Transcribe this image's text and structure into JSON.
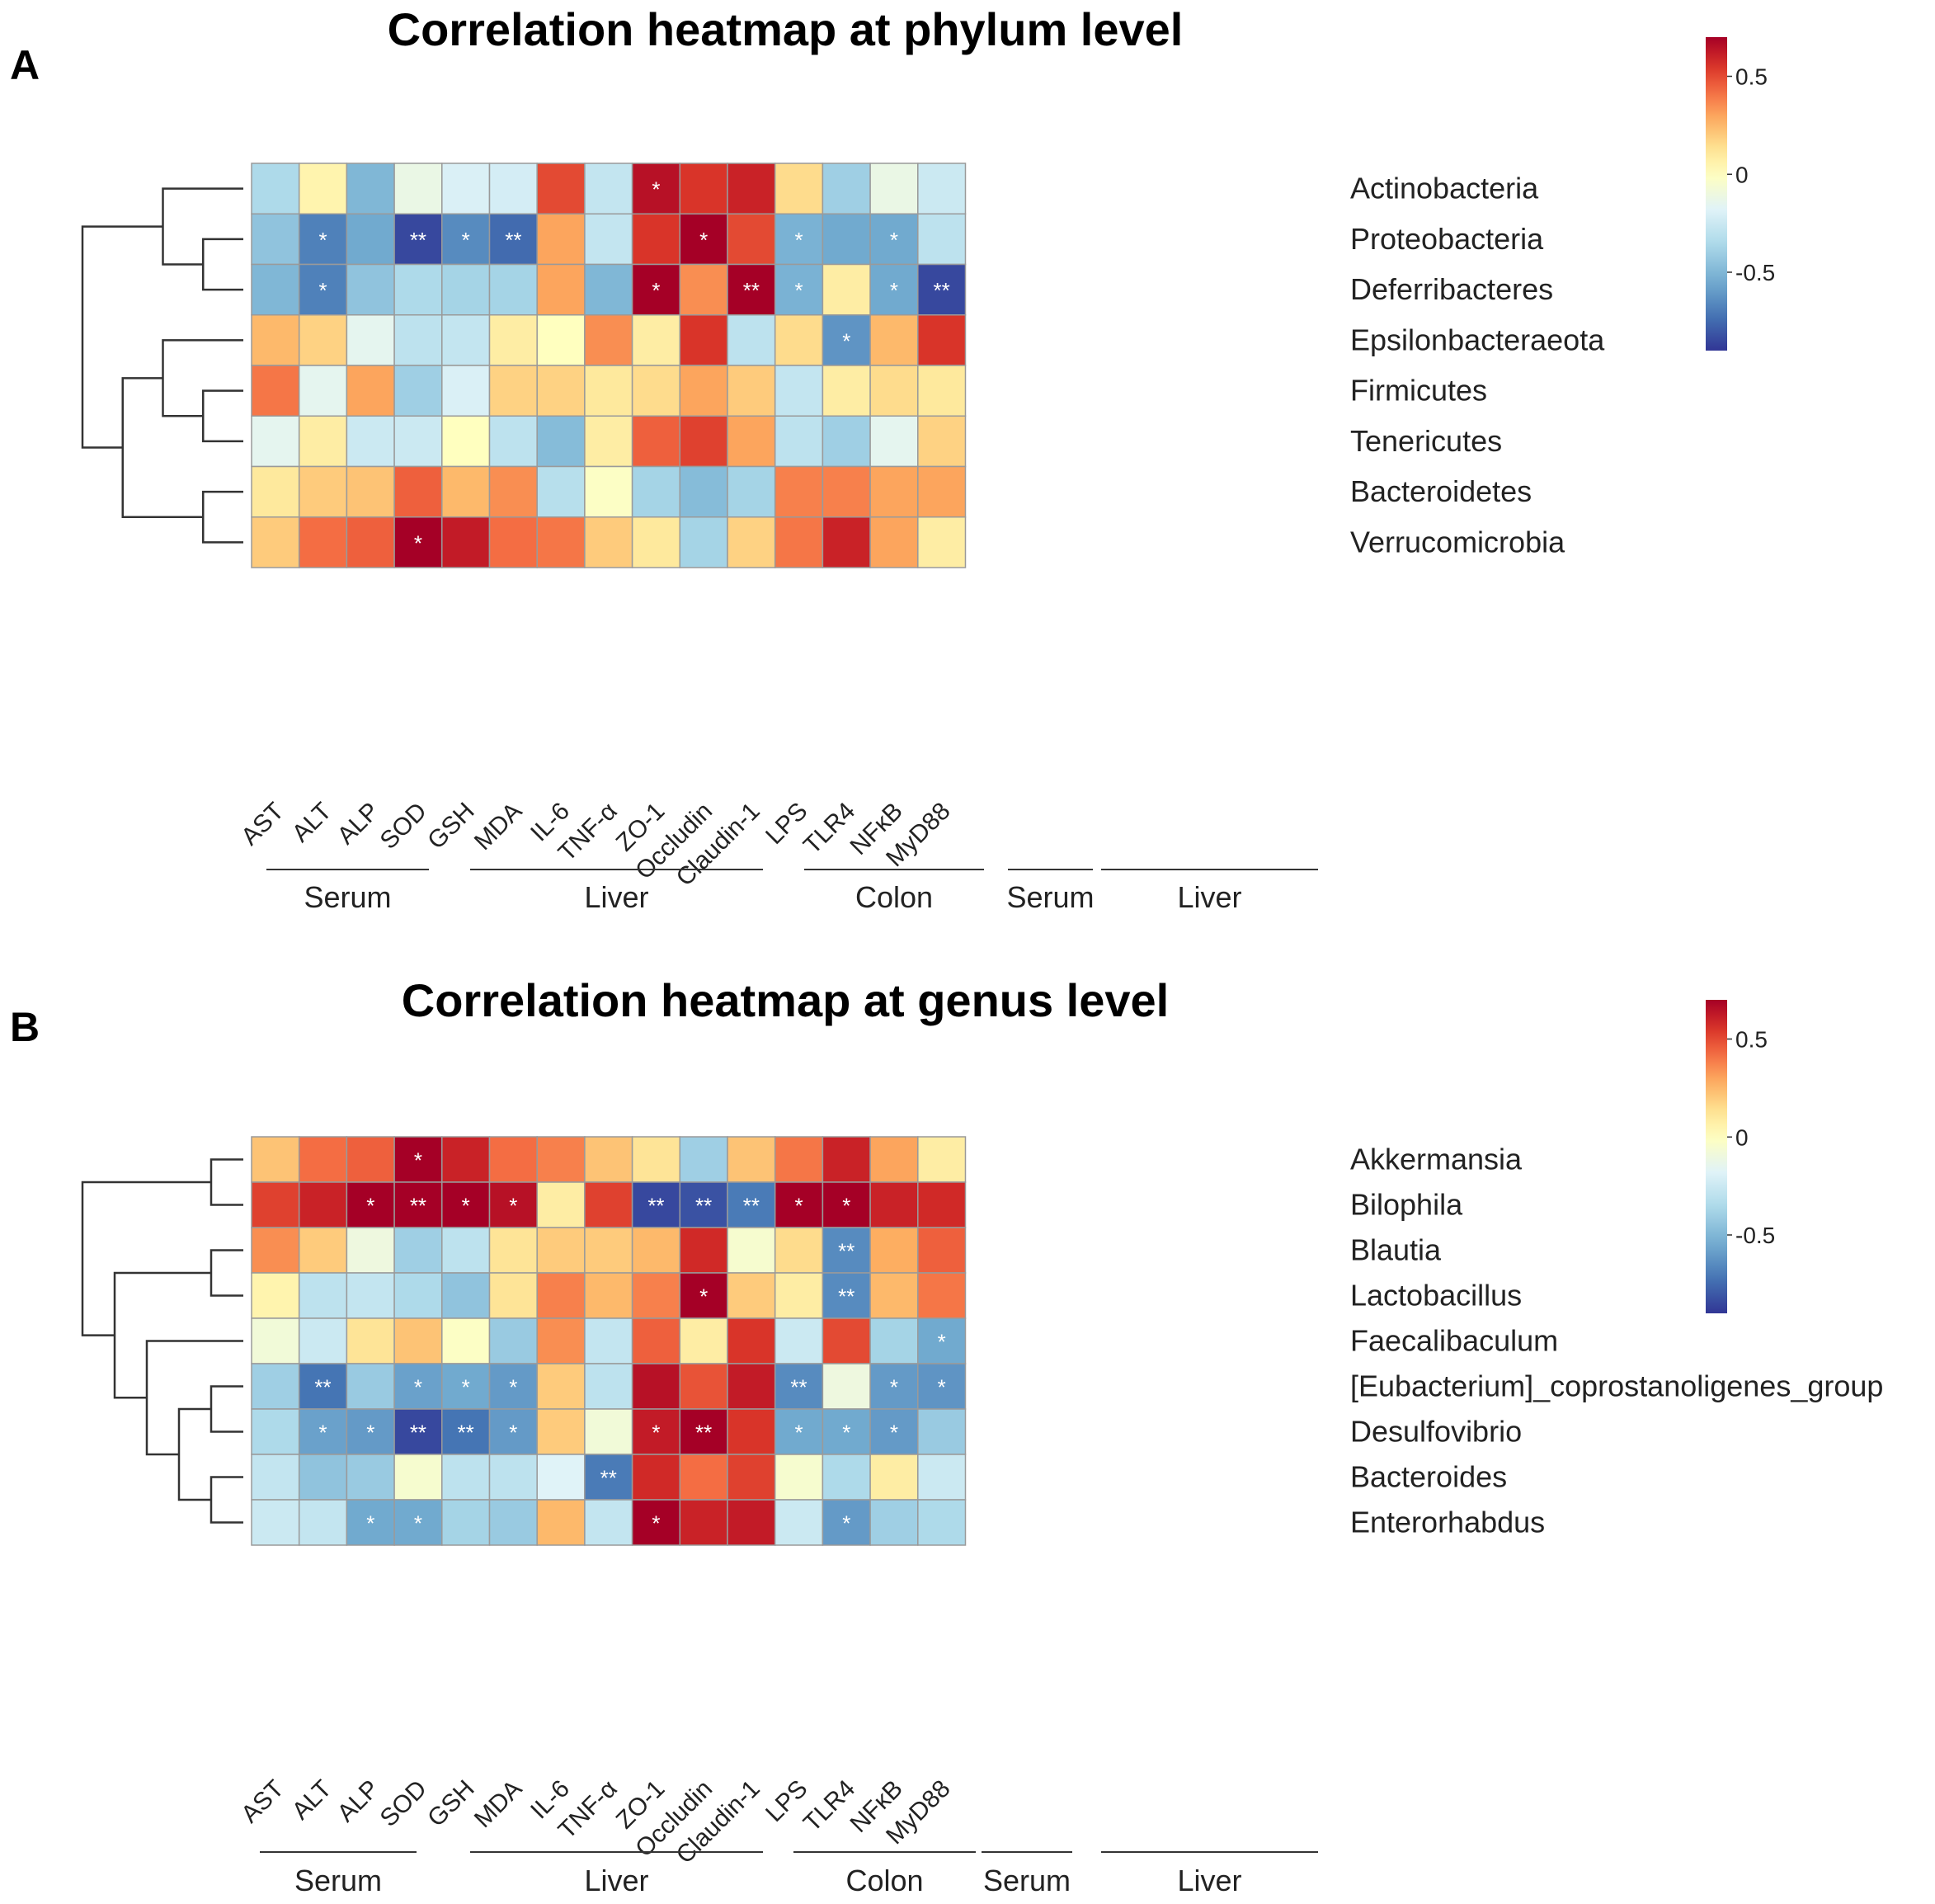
{
  "chart_data": [
    {
      "type": "heatmap",
      "panel_label": "A",
      "title": "Correlation heatmap at phylum level",
      "rows": [
        "Actinobacteria",
        "Proteobacteria",
        "Deferribacteres",
        "Epsilonbacteraeota",
        "Firmicutes",
        "Tenericutes",
        "Bacteroidetes",
        "Verrucomicrobia"
      ],
      "columns": [
        "AST",
        "ALT",
        "ALP",
        "SOD",
        "GSH",
        "MDA",
        "IL-6",
        "TNF-α",
        "ZO-1",
        "Occludin",
        "Claudin-1",
        "LPS",
        "TLR4",
        "NFκB",
        "MyD88"
      ],
      "groups": [
        {
          "label": "Serum",
          "start": 0,
          "end": 2
        },
        {
          "label": "Liver",
          "start": 3,
          "end": 7
        },
        {
          "label": "Colon",
          "start": 8,
          "end": 10
        },
        {
          "label": "Serum",
          "start": 11,
          "end": 11
        },
        {
          "label": "Liver",
          "start": 12,
          "end": 14
        }
      ],
      "values": [
        [
          -0.35,
          0.05,
          -0.5,
          -0.12,
          -0.2,
          -0.22,
          0.5,
          -0.28,
          0.65,
          0.55,
          0.6,
          0.15,
          -0.4,
          -0.12,
          -0.25
        ],
        [
          -0.45,
          -0.68,
          -0.55,
          -0.85,
          -0.65,
          -0.75,
          0.3,
          -0.28,
          0.55,
          0.72,
          0.5,
          -0.52,
          -0.55,
          -0.55,
          -0.3
        ],
        [
          -0.5,
          -0.68,
          -0.45,
          -0.35,
          -0.38,
          -0.38,
          0.3,
          -0.5,
          0.72,
          0.35,
          0.72,
          -0.52,
          0.08,
          -0.55,
          -0.85
        ],
        [
          0.25,
          0.18,
          -0.15,
          -0.3,
          -0.28,
          0.08,
          0.0,
          0.35,
          0.08,
          0.55,
          -0.3,
          0.15,
          -0.62,
          0.25,
          0.55
        ],
        [
          0.4,
          -0.15,
          0.3,
          -0.4,
          -0.2,
          0.18,
          0.18,
          0.1,
          0.15,
          0.3,
          0.2,
          -0.28,
          0.08,
          0.15,
          0.1
        ],
        [
          -0.15,
          0.08,
          -0.25,
          -0.25,
          0.0,
          -0.3,
          -0.48,
          0.08,
          0.45,
          0.52,
          0.3,
          -0.3,
          -0.4,
          -0.15,
          0.18
        ],
        [
          0.1,
          0.2,
          0.22,
          0.45,
          0.25,
          0.35,
          -0.32,
          -0.02,
          -0.38,
          -0.48,
          -0.38,
          0.38,
          0.38,
          0.3,
          0.3
        ],
        [
          0.2,
          0.42,
          0.45,
          0.72,
          0.62,
          0.42,
          0.4,
          0.2,
          0.1,
          -0.38,
          0.18,
          0.4,
          0.6,
          0.3,
          0.08
        ]
      ],
      "significance": [
        [
          "",
          "",
          "",
          "",
          "",
          "",
          "",
          "",
          "*",
          "",
          "",
          "",
          "",
          "",
          ""
        ],
        [
          "",
          "*",
          "",
          "**",
          "*",
          "**",
          "",
          "",
          "",
          "*",
          "",
          "*",
          "",
          "*",
          ""
        ],
        [
          "",
          "*",
          "",
          "",
          "",
          "",
          "",
          "",
          "*",
          "",
          "**",
          "*",
          "",
          "*",
          "**"
        ],
        [
          "",
          "",
          "",
          "",
          "",
          "",
          "",
          "",
          "",
          "",
          "",
          "",
          "*",
          "",
          ""
        ],
        [
          "",
          "",
          "",
          "",
          "",
          "",
          "",
          "",
          "",
          "",
          "",
          "",
          "",
          "",
          ""
        ],
        [
          "",
          "",
          "",
          "",
          "",
          "",
          "",
          "",
          "",
          "",
          "",
          "",
          "",
          "",
          ""
        ],
        [
          "",
          "",
          "",
          "",
          "",
          "",
          "",
          "",
          "",
          "",
          "",
          "",
          "",
          "",
          ""
        ],
        [
          "",
          "",
          "",
          "*",
          "",
          "",
          "",
          "",
          "",
          "",
          "",
          "",
          "",
          "",
          ""
        ]
      ],
      "dendrogram": [
        [
          0,
          1,
          2,
          3,
          4,
          5,
          6,
          7
        ],
        [
          [
            0,
            [
              1,
              2
            ]
          ],
          [
            [
              3,
              [
                4,
                5
              ]
            ],
            [
              6,
              7
            ]
          ]
        ]
      ],
      "legend": {
        "ticks": [
          0.5,
          0,
          -0.5
        ],
        "tick_labels": [
          "0.5",
          "0",
          "-0.5"
        ],
        "min": -0.9,
        "max": 0.7
      },
      "colors": {
        "low": "#313695",
        "mid": "#ffffbf",
        "high": "#a50026"
      }
    },
    {
      "type": "heatmap",
      "panel_label": "B",
      "title": "Correlation heatmap at genus level",
      "rows": [
        "Akkermansia",
        "Bilophila",
        "Blautia",
        "Lactobacillus",
        "Faecalibaculum",
        "[Eubacterium]_coprostanoligenes_group",
        "Desulfovibrio",
        "Bacteroides",
        "Enterorhabdus"
      ],
      "columns": [
        "AST",
        "ALT",
        "ALP",
        "SOD",
        "GSH",
        "MDA",
        "IL-6",
        "TNF-α",
        "ZO-1",
        "Occludin",
        "Claudin-1",
        "LPS",
        "TLR4",
        "NFκB",
        "MyD88"
      ],
      "groups": [
        {
          "label": "Serum",
          "start": 0,
          "end": 2
        },
        {
          "label": "Liver",
          "start": 3,
          "end": 7
        },
        {
          "label": "Colon",
          "start": 8,
          "end": 10
        },
        {
          "label": "Serum",
          "start": 11,
          "end": 11
        },
        {
          "label": "Liver",
          "start": 12,
          "end": 14
        }
      ],
      "values": [
        [
          0.22,
          0.42,
          0.45,
          0.7,
          0.6,
          0.42,
          0.38,
          0.22,
          0.12,
          -0.4,
          0.22,
          0.4,
          0.6,
          0.3,
          0.08
        ],
        [
          0.52,
          0.6,
          0.7,
          0.75,
          0.7,
          0.65,
          0.08,
          0.52,
          -0.85,
          -0.82,
          -0.7,
          0.7,
          0.72,
          0.6,
          0.58
        ],
        [
          0.35,
          0.2,
          -0.1,
          -0.4,
          -0.3,
          0.12,
          0.2,
          0.2,
          0.25,
          0.58,
          -0.05,
          0.15,
          -0.65,
          0.28,
          0.45
        ],
        [
          0.05,
          -0.3,
          -0.28,
          -0.35,
          -0.45,
          0.12,
          0.38,
          0.25,
          0.38,
          0.72,
          0.2,
          0.08,
          -0.65,
          0.25,
          0.4
        ],
        [
          -0.08,
          -0.25,
          0.12,
          0.22,
          -0.02,
          -0.42,
          0.35,
          -0.28,
          0.45,
          0.08,
          0.55,
          -0.25,
          0.5,
          -0.38,
          -0.55
        ],
        [
          -0.4,
          -0.72,
          -0.42,
          -0.58,
          -0.55,
          -0.6,
          0.2,
          -0.3,
          0.65,
          0.48,
          0.62,
          -0.65,
          -0.1,
          -0.6,
          -0.62
        ],
        [
          -0.35,
          -0.58,
          -0.6,
          -0.85,
          -0.72,
          -0.6,
          0.2,
          -0.08,
          0.62,
          0.72,
          0.55,
          -0.55,
          -0.55,
          -0.6,
          -0.42
        ],
        [
          -0.28,
          -0.45,
          -0.42,
          -0.05,
          -0.3,
          -0.3,
          -0.18,
          -0.7,
          0.58,
          0.42,
          0.52,
          -0.05,
          -0.35,
          0.08,
          -0.25
        ],
        [
          -0.25,
          -0.28,
          -0.55,
          -0.55,
          -0.38,
          -0.42,
          0.25,
          -0.28,
          0.7,
          0.6,
          0.62,
          -0.25,
          -0.6,
          -0.4,
          -0.35
        ]
      ],
      "significance": [
        [
          "",
          "",
          "",
          "*",
          "",
          "",
          "",
          "",
          "",
          "",
          "",
          "",
          "",
          "",
          ""
        ],
        [
          "",
          "",
          "*",
          "**",
          "*",
          "*",
          "",
          "",
          "**",
          "**",
          "**",
          "*",
          "*",
          "",
          ""
        ],
        [
          "",
          "",
          "",
          "",
          "",
          "",
          "",
          "",
          "",
          "",
          "",
          "",
          "**",
          "",
          ""
        ],
        [
          "",
          "",
          "",
          "",
          "",
          "",
          "",
          "",
          "",
          "*",
          "",
          "",
          "**",
          "",
          ""
        ],
        [
          "",
          "",
          "",
          "",
          "",
          "",
          "",
          "",
          "",
          "",
          "",
          "",
          "",
          "",
          "*"
        ],
        [
          "",
          "**",
          "",
          "*",
          "*",
          "*",
          "",
          "",
          "",
          "",
          "",
          "**",
          "",
          "*",
          "*"
        ],
        [
          "",
          "*",
          "*",
          "**",
          "**",
          "*",
          "",
          "",
          "*",
          "**",
          "",
          "*",
          "*",
          "*",
          ""
        ],
        [
          "",
          "",
          "",
          "",
          "",
          "",
          "",
          "**",
          "",
          "",
          "",
          "",
          "",
          "",
          ""
        ],
        [
          "",
          "",
          "*",
          "*",
          "",
          "",
          "",
          "",
          "*",
          "",
          "",
          "",
          "*",
          "",
          ""
        ]
      ],
      "dendrogram": [
        [
          0,
          1,
          2,
          3,
          4,
          5,
          6,
          7,
          8
        ],
        [
          [
            0,
            1
          ],
          [
            [
              2,
              3
            ],
            [
              4,
              [
                [
                  5,
                  6
                ],
                [
                  7,
                  8
                ]
              ]
            ]
          ]
        ]
      ],
      "legend": {
        "ticks": [
          0.5,
          0,
          -0.5
        ],
        "tick_labels": [
          "0.5",
          "0",
          "-0.5"
        ],
        "min": -0.9,
        "max": 0.7
      },
      "colors": {
        "low": "#313695",
        "mid": "#ffffbf",
        "high": "#a50026"
      }
    }
  ]
}
